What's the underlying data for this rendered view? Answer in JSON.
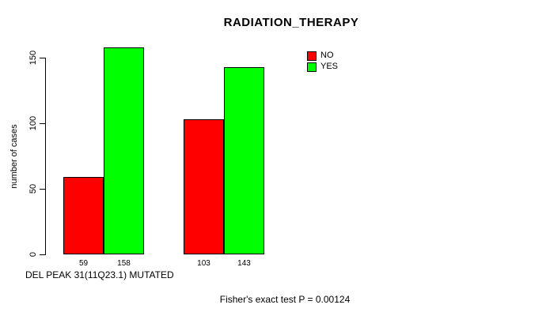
{
  "chart_data": {
    "type": "bar",
    "title": "RADIATION_THERAPY",
    "ylabel": "number of cases",
    "xlabel": "DEL PEAK 31(11Q23.1) MUTATED",
    "ylim": [
      0,
      158
    ],
    "yticks": [
      0,
      50,
      100,
      150
    ],
    "grid": false,
    "legend_position": "top-right",
    "categories": [
      "group-1",
      "group-2"
    ],
    "series": [
      {
        "name": "NO",
        "color": "#FF0000",
        "values": [
          59,
          103
        ]
      },
      {
        "name": "YES",
        "color": "#00FF00",
        "values": [
          158,
          143
        ]
      }
    ],
    "bar_value_labels": [
      "59",
      "158",
      "103",
      "143"
    ],
    "annotation": "Fisher's exact test P = 0.00124"
  },
  "colors": {
    "no": "#FF0000",
    "yes": "#00FF00",
    "axis": "#000000",
    "background": "#FFFFFF"
  }
}
